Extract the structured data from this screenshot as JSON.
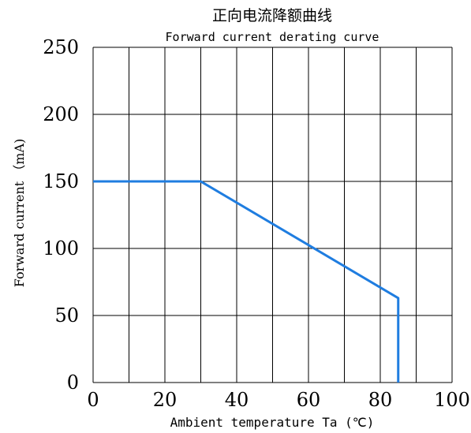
{
  "chart_data": {
    "type": "line",
    "title": "正向电流降额曲线",
    "subtitle": "Forward current derating curve",
    "xlabel": "Ambient temperature Ta (℃)",
    "ylabel": "Forward current （mA)",
    "xlim": [
      0,
      100
    ],
    "ylim": [
      0,
      250
    ],
    "x_ticks": [
      0,
      20,
      40,
      60,
      80,
      100
    ],
    "y_ticks": [
      0,
      50,
      100,
      150,
      200,
      250
    ],
    "x_grid_step": 10,
    "y_grid_step": 50,
    "grid": true,
    "series": [
      {
        "color": "#1f7de0",
        "points": [
          [
            0,
            150
          ],
          [
            30,
            150
          ],
          [
            85,
            63
          ],
          [
            85,
            0
          ]
        ]
      }
    ]
  }
}
